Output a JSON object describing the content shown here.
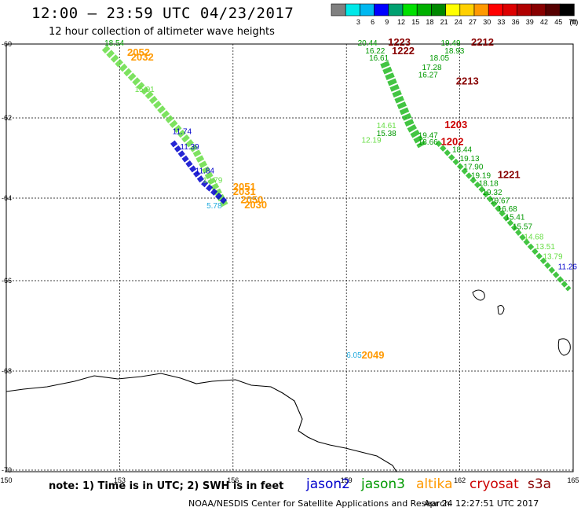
{
  "header": {
    "title": "12:00 – 23:59 UTC 04/23/2017",
    "subtitle": "12 hour collection of altimeter wave heights"
  },
  "legend": {
    "unit": "(ft)",
    "swatches": [
      {
        "label": "",
        "color": "#808080"
      },
      {
        "label": "3",
        "color": "#00e8e8"
      },
      {
        "label": "6",
        "color": "#00b8f0"
      },
      {
        "label": "9",
        "color": "#0000ff"
      },
      {
        "label": "12",
        "color": "#00a070"
      },
      {
        "label": "15",
        "color": "#00e000"
      },
      {
        "label": "18",
        "color": "#00b000"
      },
      {
        "label": "21",
        "color": "#008800"
      },
      {
        "label": "24",
        "color": "#ffff00"
      },
      {
        "label": "27",
        "color": "#ffd000"
      },
      {
        "label": "30",
        "color": "#ff9900"
      },
      {
        "label": "33",
        "color": "#ff0000"
      },
      {
        "label": "36",
        "color": "#dd0000"
      },
      {
        "label": "39",
        "color": "#b00000"
      },
      {
        "label": "42",
        "color": "#880000"
      },
      {
        "label": "45",
        "color": "#550000"
      },
      {
        "label": "70",
        "color": "#000000"
      }
    ]
  },
  "axes": {
    "lat_labels": [
      "-60",
      "-62",
      "-64",
      "-66",
      "-68",
      "-70"
    ],
    "lon_labels": [
      "150",
      "153",
      "156",
      "159",
      "162",
      "165"
    ]
  },
  "colors": {
    "jason2": "#0000cc",
    "jason3": "#009900",
    "altika": "#ff9900",
    "cryosat": "#cc0000",
    "s3a": "#880000",
    "light_green": "#66dd44",
    "cyan": "#22aadd"
  },
  "track_labels": [
    {
      "text": "18.54",
      "lon": 152.6,
      "lat": -60.04,
      "color": "jason3"
    },
    {
      "text": "2052",
      "lon": 153.2,
      "lat": -60.32,
      "color": "altika",
      "bold": true
    },
    {
      "text": "2032",
      "lon": 153.3,
      "lat": -60.45,
      "color": "altika",
      "bold": true
    },
    {
      "text": "15.01",
      "lon": 153.4,
      "lat": -61.3,
      "color": "light_green"
    },
    {
      "text": "11.74",
      "lon": 154.4,
      "lat": -62.4,
      "color": "jason2"
    },
    {
      "text": "11.39",
      "lon": 154.6,
      "lat": -62.78,
      "color": "jason2"
    },
    {
      "text": "11.84",
      "lon": 155.0,
      "lat": -63.38,
      "color": "jason2"
    },
    {
      "text": "12.79",
      "lon": 155.2,
      "lat": -63.62,
      "color": "light_green"
    },
    {
      "text": "2051",
      "lon": 156.0,
      "lat": -63.8,
      "color": "altika",
      "bold": true
    },
    {
      "text": "2031",
      "lon": 156.0,
      "lat": -63.92,
      "color": "altika",
      "bold": true
    },
    {
      "text": "2050",
      "lon": 156.2,
      "lat": -64.12,
      "color": "altika",
      "bold": true
    },
    {
      "text": "2030",
      "lon": 156.3,
      "lat": -64.25,
      "color": "altika",
      "bold": true
    },
    {
      "text": "5.78",
      "lon": 155.3,
      "lat": -64.25,
      "color": "cyan"
    },
    {
      "text": "20.44",
      "lon": 159.3,
      "lat": -60.04,
      "color": "jason3"
    },
    {
      "text": "1223",
      "lon": 160.1,
      "lat": -60.04,
      "color": "s3a",
      "bold": true
    },
    {
      "text": "1222",
      "lon": 160.2,
      "lat": -60.28,
      "color": "s3a",
      "bold": true
    },
    {
      "text": "16.22",
      "lon": 159.5,
      "lat": -60.25,
      "color": "jason3"
    },
    {
      "text": "16.61",
      "lon": 159.6,
      "lat": -60.45,
      "color": "jason3"
    },
    {
      "text": "19.49",
      "lon": 161.5,
      "lat": -60.04,
      "color": "jason3"
    },
    {
      "text": "2212",
      "lon": 162.3,
      "lat": -60.04,
      "color": "s3a",
      "bold": true
    },
    {
      "text": "18.93",
      "lon": 161.6,
      "lat": -60.25,
      "color": "jason3"
    },
    {
      "text": "18.05",
      "lon": 161.2,
      "lat": -60.45,
      "color": "jason3"
    },
    {
      "text": "17.28",
      "lon": 161.0,
      "lat": -60.7,
      "color": "jason3"
    },
    {
      "text": "16.27",
      "lon": 160.9,
      "lat": -60.9,
      "color": "jason3"
    },
    {
      "text": "2213",
      "lon": 161.9,
      "lat": -61.1,
      "color": "s3a",
      "bold": true
    },
    {
      "text": "14.61",
      "lon": 159.8,
      "lat": -62.25,
      "color": "light_green"
    },
    {
      "text": "15.38",
      "lon": 159.8,
      "lat": -62.45,
      "color": "jason3"
    },
    {
      "text": "12.19",
      "lon": 159.4,
      "lat": -62.62,
      "color": "light_green"
    },
    {
      "text": "18.66",
      "lon": 160.9,
      "lat": -62.67,
      "color": "jason3"
    },
    {
      "text": "19.47",
      "lon": 160.9,
      "lat": -62.5,
      "color": "jason3"
    },
    {
      "text": "1203",
      "lon": 161.6,
      "lat": -62.25,
      "color": "cryosat",
      "bold": true
    },
    {
      "text": "1202",
      "lon": 161.5,
      "lat": -62.68,
      "color": "cryosat",
      "bold": true
    },
    {
      "text": "18.44",
      "lon": 161.8,
      "lat": -62.85,
      "color": "jason3"
    },
    {
      "text": "19.13",
      "lon": 162.0,
      "lat": -63.08,
      "color": "jason3"
    },
    {
      "text": "17.90",
      "lon": 162.1,
      "lat": -63.28,
      "color": "jason3"
    },
    {
      "text": "19.19",
      "lon": 162.3,
      "lat": -63.5,
      "color": "jason3"
    },
    {
      "text": "1221",
      "lon": 163.0,
      "lat": -63.5,
      "color": "s3a",
      "bold": true
    },
    {
      "text": "18.18",
      "lon": 162.5,
      "lat": -63.7,
      "color": "jason3"
    },
    {
      "text": "19.32",
      "lon": 162.6,
      "lat": -63.92,
      "color": "jason3"
    },
    {
      "text": "19.67",
      "lon": 162.8,
      "lat": -64.12,
      "color": "jason3"
    },
    {
      "text": "16.68",
      "lon": 163.0,
      "lat": -64.32,
      "color": "jason3"
    },
    {
      "text": "15.41",
      "lon": 163.2,
      "lat": -64.52,
      "color": "jason3"
    },
    {
      "text": "15.57",
      "lon": 163.4,
      "lat": -64.75,
      "color": "jason3"
    },
    {
      "text": "14.68",
      "lon": 163.7,
      "lat": -65.0,
      "color": "light_green"
    },
    {
      "text": "13.51",
      "lon": 164.0,
      "lat": -65.24,
      "color": "light_green"
    },
    {
      "text": "13.79",
      "lon": 164.2,
      "lat": -65.48,
      "color": "light_green"
    },
    {
      "text": "11.26",
      "lon": 164.6,
      "lat": -65.72,
      "color": "jason2"
    },
    {
      "text": "6.05",
      "lon": 159.0,
      "lat": -67.7,
      "color": "cyan"
    },
    {
      "text": "2049",
      "lon": 159.4,
      "lat": -67.72,
      "color": "altika",
      "bold": true
    }
  ],
  "footer": {
    "note": "note: 1) Time is in UTC; 2) SWH is in feet",
    "satellites": [
      {
        "name": "jason2",
        "color": "#0000cc"
      },
      {
        "name": "jason3",
        "color": "#009900"
      },
      {
        "name": "altika",
        "color": "#ff9900"
      },
      {
        "name": "cryosat",
        "color": "#cc0000"
      },
      {
        "name": "s3a",
        "color": "#880000"
      }
    ],
    "credit": "NOAA/NESDIS Center for Satellite Applications and Research",
    "timestamp": "Apr 24 12:27:51 UTC 2017"
  }
}
